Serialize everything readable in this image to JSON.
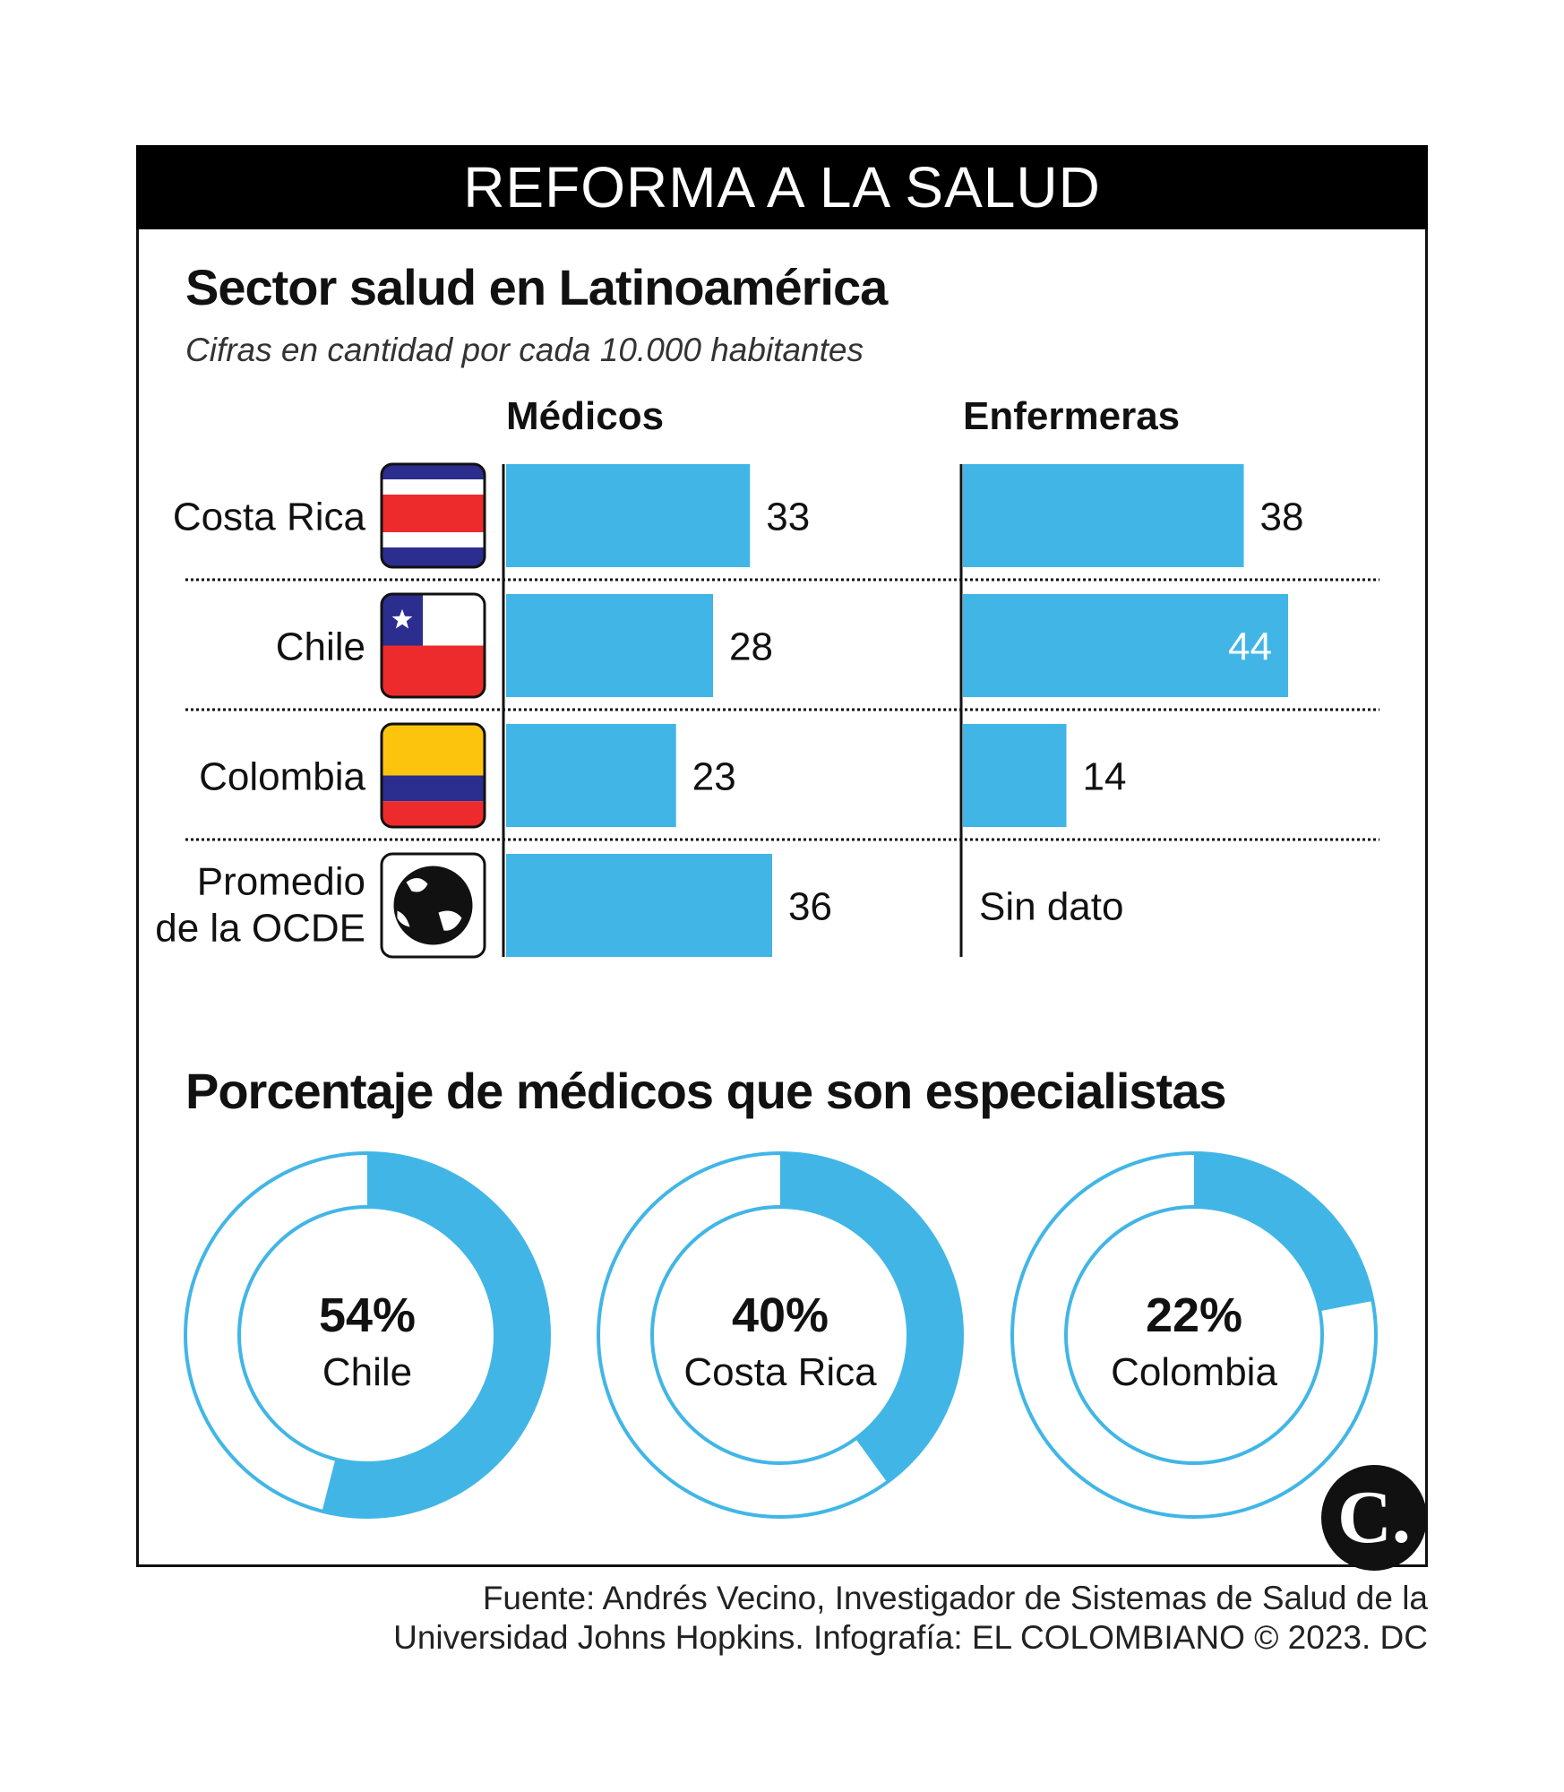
{
  "header": {
    "title": "REFORMA A LA SALUD"
  },
  "section1": {
    "title": "Sector salud en Latinoamérica",
    "subtitle": "Cifras en cantidad por cada 10.000 habitantes"
  },
  "section2": {
    "title": "Porcentaje de médicos que son especialistas"
  },
  "colors": {
    "accent": "#41b6e6",
    "red": "#ee2b2c",
    "blue": "#2b2d8f",
    "yellow": "#fcc40c"
  },
  "chart_data": [
    {
      "type": "bar",
      "title": "Sector salud en Latinoamérica",
      "subtitle": "Cifras en cantidad por cada 10.000 habitantes",
      "categories": [
        "Costa Rica",
        "Chile",
        "Colombia",
        "Promedio de la OCDE"
      ],
      "category_lines": [
        [
          "Costa Rica"
        ],
        [
          "Chile"
        ],
        [
          "Colombia"
        ],
        [
          "Promedio",
          "de la OCDE"
        ]
      ],
      "flags": [
        "costa-rica-flag-icon",
        "chile-flag-icon",
        "colombia-flag-icon",
        "globe-icon"
      ],
      "series": [
        {
          "name": "Médicos",
          "values": [
            33,
            28,
            23,
            36
          ],
          "labels": [
            "33",
            "28",
            "23",
            "36"
          ]
        },
        {
          "name": "Enfermeras",
          "values": [
            38,
            44,
            14,
            null
          ],
          "labels": [
            "38",
            "44",
            "14",
            "Sin dato"
          ]
        }
      ]
    },
    {
      "type": "pie",
      "title": "Porcentaje de médicos que son especialistas",
      "items": [
        {
          "label": "Chile",
          "value": 54,
          "display": "54%"
        },
        {
          "label": "Costa Rica",
          "value": 40,
          "display": "40%"
        },
        {
          "label": "Colombia",
          "value": 22,
          "display": "22%"
        }
      ]
    }
  ],
  "source": {
    "line1": "Fuente: Andrés Vecino, Investigador de Sistemas de Salud de la",
    "line2": "Universidad Johns Hopkins. Infografía: EL COLOMBIANO © 2023. DC"
  },
  "logo": {
    "text": "C."
  }
}
